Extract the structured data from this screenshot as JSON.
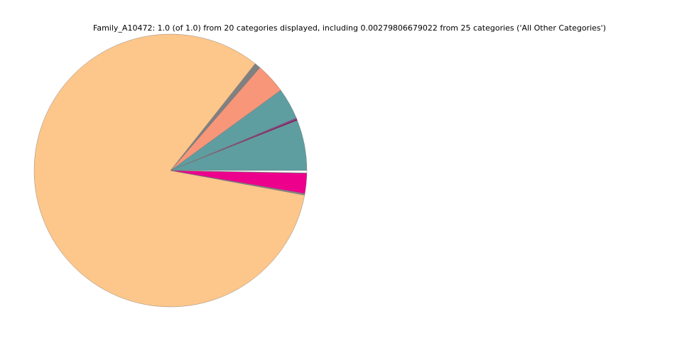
{
  "chart_data": {
    "type": "pie",
    "title": "Family_A10472: 1.0 (of 1.0) from 20 categories displayed, including 0.00279806679022 from 25 categories ('All Other Categories')",
    "values": [
      0.06,
      0.0015,
      0.0015,
      0.0001,
      0.037,
      0.0001,
      0.036,
      0.0001,
      0.007,
      0.0001,
      0.8278,
      0.0001,
      0.0001,
      0.0015,
      0.0001,
      0.024,
      0.0001,
      0.0001,
      0.0001,
      0.0028
    ],
    "colors": [
      "#5f9ea0",
      "#8b0a50",
      "#7d3c98",
      "#5f9ea0",
      "#5f9ea0",
      "#fa8072",
      "#f79679",
      "#808080",
      "#808080",
      "#fdc68a",
      "#fdc68a",
      "#a0a0a0",
      "#808080",
      "#8a8a8a",
      "#ec008c",
      "#ec008c",
      "#ec008c",
      "#d0d0d0",
      "#e8e8e8",
      "#ffffff"
    ]
  }
}
